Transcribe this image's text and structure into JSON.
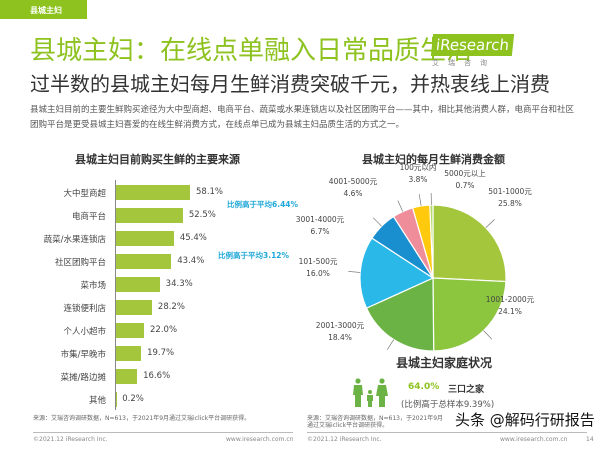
{
  "tag": "县城主妇",
  "title": "县城主妇：在线点单融入日常品质生活",
  "logo": {
    "main": "iResearch",
    "sub": "艾瑞咨询"
  },
  "subtitle": "过半数的县城主妇每月生鲜消费突破千元，并热衷线上消费",
  "description": "县城主妇目前的主要生鲜购买途径为大中型商超、电商平台、蔬菜或水果连锁店以及社区团购平台——其中，相比其他消费人群，电商平台和社区团购平台是更受县城主妇喜爱的在线生鲜消费方式，在线点单已成为县城主妇品质生活的方式之一。",
  "chart_data": [
    {
      "type": "bar",
      "orientation": "horizontal",
      "title": "县城主妇目前购买生鲜的主要来源",
      "categories": [
        "大中型商超",
        "电商平台",
        "蔬菜/水果连锁店",
        "社区团购平台",
        "菜市场",
        "连锁便利店",
        "个人小超市",
        "市集/早晚市",
        "菜摊/路边摊",
        "其他"
      ],
      "values": [
        58.1,
        52.5,
        45.4,
        43.4,
        34.3,
        28.2,
        22.0,
        19.7,
        16.6,
        0.2
      ],
      "value_labels": [
        "58.1%",
        "52.5%",
        "45.4%",
        "43.4%",
        "34.3%",
        "28.2%",
        "22.0%",
        "19.7%",
        "16.6%",
        "0.2%"
      ],
      "annotations": [
        "比例高于平均6.44%",
        "比例高于平均3.12%"
      ],
      "color": "#a4c63c"
    },
    {
      "type": "pie",
      "title": "县城主妇的每月生鲜消费金额",
      "categories": [
        "501-1000元",
        "1001-2000元",
        "2001-3000元",
        "101-500元",
        "3001-4000元",
        "4001-5000元",
        "100元以内",
        "5000元以上"
      ],
      "values": [
        25.8,
        24.1,
        18.4,
        16.0,
        6.7,
        4.6,
        3.8,
        0.7
      ],
      "value_labels": [
        "25.8%",
        "24.1%",
        "18.4%",
        "16.0%",
        "6.7%",
        "4.6%",
        "3.8%",
        "0.7%"
      ],
      "colors": [
        "#a4c63c",
        "#8cc63f",
        "#6bb345",
        "#2ab8e9",
        "#1a8fd0",
        "#ef8d9b",
        "#ffc90e",
        "#b9d86a"
      ]
    }
  ],
  "family": {
    "title": "县城主妇家庭状况",
    "percent": "64.0%",
    "label": "三口之家",
    "note": "(比例高于总样本9.39%)",
    "icon_color": "#6bb345"
  },
  "footer": {
    "source": "来源：艾瑞咨询调研数据，N=613，于2021年9月通过艾瑞iclick平台调研获得。",
    "copyright": "©2021.12 iResearch Inc.",
    "url": "www.iresearch.com.cn",
    "page": "14"
  },
  "watermark": "头条 @解码行研报告"
}
